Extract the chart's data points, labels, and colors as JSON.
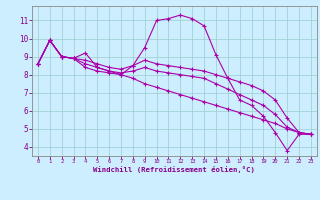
{
  "title": "Windchill (Refroidissement éolien,°C)",
  "xlabel": "Windchill (Refroidissement éolien,°C)",
  "background_color": "#cceeff",
  "line_color": "#aa00aa",
  "xlim": [
    -0.5,
    23.5
  ],
  "ylim": [
    3.5,
    11.8
  ],
  "xticks": [
    0,
    1,
    2,
    3,
    4,
    5,
    6,
    7,
    8,
    9,
    10,
    11,
    12,
    13,
    14,
    15,
    16,
    17,
    18,
    19,
    20,
    21,
    22,
    23
  ],
  "yticks": [
    4,
    5,
    6,
    7,
    8,
    9,
    10,
    11
  ],
  "hours": [
    0,
    1,
    2,
    3,
    4,
    5,
    6,
    7,
    8,
    9,
    10,
    11,
    12,
    13,
    14,
    15,
    16,
    17,
    18,
    19,
    20,
    21,
    22,
    23
  ],
  "line1": [
    8.6,
    9.9,
    9.0,
    8.9,
    9.2,
    8.4,
    8.2,
    8.0,
    8.5,
    9.5,
    11.0,
    11.1,
    11.3,
    11.1,
    10.7,
    9.1,
    7.8,
    6.6,
    6.3,
    5.7,
    4.8,
    3.8,
    4.7,
    4.7
  ],
  "line2": [
    8.6,
    9.9,
    9.0,
    8.9,
    8.8,
    8.6,
    8.4,
    8.3,
    8.5,
    8.8,
    8.6,
    8.5,
    8.4,
    8.3,
    8.2,
    8.0,
    7.8,
    7.6,
    7.4,
    7.1,
    6.6,
    5.6,
    4.8,
    4.7
  ],
  "line3": [
    8.6,
    9.9,
    9.0,
    8.9,
    8.6,
    8.4,
    8.2,
    8.1,
    8.2,
    8.4,
    8.2,
    8.1,
    8.0,
    7.9,
    7.8,
    7.5,
    7.2,
    6.9,
    6.6,
    6.3,
    5.8,
    5.1,
    4.8,
    4.7
  ],
  "line4": [
    8.6,
    9.9,
    9.0,
    8.9,
    8.4,
    8.2,
    8.1,
    8.0,
    7.8,
    7.5,
    7.3,
    7.1,
    6.9,
    6.7,
    6.5,
    6.3,
    6.1,
    5.9,
    5.7,
    5.5,
    5.3,
    5.0,
    4.8,
    4.7
  ]
}
